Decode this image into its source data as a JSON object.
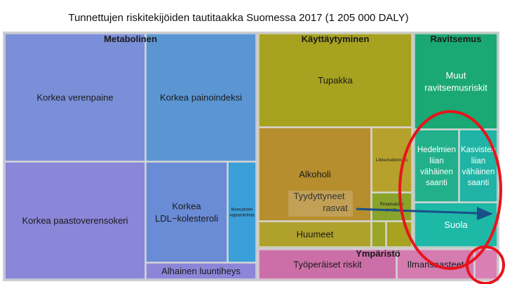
{
  "title": "Tunnettujen riskitekijöiden tautitaakka Suomessa 2017 (1 205 000 DALY)",
  "chart_data": {
    "type": "treemap",
    "groups": [
      {
        "name": "Metabolinen",
        "color": "#7b8fd9"
      },
      {
        "name": "Käyttäytyminen",
        "color": "#a7a21f"
      },
      {
        "name": "Ravitsemus",
        "color": "#1aa874"
      },
      {
        "name": "Ympäristö",
        "color": "#cc6fa8"
      }
    ],
    "cells": [
      {
        "group": "Metabolinen",
        "label": "Korkea verenpaine",
        "color": "#7b8fd9"
      },
      {
        "group": "Metabolinen",
        "label": "Korkea painoindeksi",
        "color": "#5b96d3"
      },
      {
        "group": "Metabolinen",
        "label": "Korkea paastoverensokeri",
        "color": "#8a86d8"
      },
      {
        "group": "Metabolinen",
        "label": "Korkea LDL−kolesteroli",
        "color": "#6a8bd6"
      },
      {
        "group": "Metabolinen",
        "label": "Munuaisten vajaatoiminta",
        "color": "#3b9fd8"
      },
      {
        "group": "Metabolinen",
        "label": "Alhainen luuntiheys",
        "color": "#8c86d9"
      },
      {
        "group": "Käyttäytyminen",
        "label": "Tupakka",
        "color": "#a7a21f"
      },
      {
        "group": "Käyttäytyminen",
        "label": "Alkoholi",
        "color": "#b68e2e"
      },
      {
        "group": "Käyttäytyminen",
        "label": "Liikkumattomuus",
        "color": "#b6a12c"
      },
      {
        "group": "Käyttäytyminen",
        "label": "Rintamaidon puute",
        "color": "#8aa32a"
      },
      {
        "group": "Käyttäytyminen",
        "label": "Huumeet",
        "color": "#b0a12c"
      },
      {
        "group": "Käyttäytyminen",
        "label": "",
        "color": "#9aa526"
      },
      {
        "group": "Käyttäytyminen",
        "label": "",
        "color": "#a7a21f"
      },
      {
        "group": "Ravitsemus",
        "label": "Muut ravitsemusriskit",
        "color": "#1aa874"
      },
      {
        "group": "Ravitsemus",
        "label": "Hedelmien liian vähäinen saanti",
        "color": "#22b08a"
      },
      {
        "group": "Ravitsemus",
        "label": "Kasvisten liian vähäinen saanti",
        "color": "#1fb4a5"
      },
      {
        "group": "Ravitsemus",
        "label": "Suola",
        "color": "#1db8a6"
      },
      {
        "group": "Ravitsemus",
        "label": "",
        "color": "#22aa8a"
      },
      {
        "group": "Ympäristö",
        "label": "Työperäiset riskit",
        "color": "#cc6fa8"
      },
      {
        "group": "Ympäristö",
        "label": "Ilmansaasteet",
        "color": "#d47cb0"
      },
      {
        "group": "Ympäristö",
        "label": "",
        "color": "#d87fb4"
      }
    ],
    "annotation": {
      "text": "Tyydyttyneet rasvat",
      "arrow_color": "#1a4f8a"
    },
    "highlight_color": "#e8141c"
  }
}
